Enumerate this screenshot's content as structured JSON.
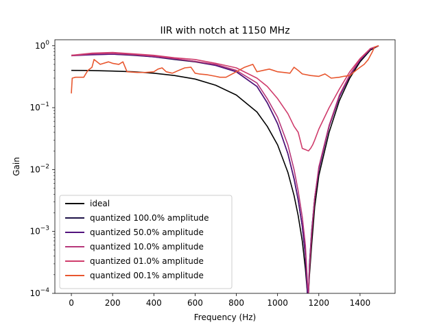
{
  "chart_data": {
    "type": "line",
    "title": "IIR with notch at 1150 MHz",
    "xlabel": "Frequency (Hz)",
    "ylabel": "Gain",
    "xlim": [
      -80,
      1570
    ],
    "ylim": [
      0.0001,
      1.25
    ],
    "yscale": "log",
    "grid": false,
    "legend_position": "lower-left",
    "x_ticks": [
      {
        "value": 0,
        "label": "0"
      },
      {
        "value": 200,
        "label": "200"
      },
      {
        "value": 400,
        "label": "400"
      },
      {
        "value": 600,
        "label": "600"
      },
      {
        "value": 800,
        "label": "800"
      },
      {
        "value": 1000,
        "label": "1000"
      },
      {
        "value": 1200,
        "label": "1200"
      },
      {
        "value": 1400,
        "label": "1400"
      }
    ],
    "y_ticks": [
      {
        "value": 1,
        "base": "10",
        "exp": "0"
      },
      {
        "value": 0.1,
        "base": "10",
        "exp": "−1"
      },
      {
        "value": 0.01,
        "base": "10",
        "exp": "−2"
      },
      {
        "value": 0.001,
        "base": "10",
        "exp": "−3"
      },
      {
        "value": 0.0001,
        "base": "10",
        "exp": "−4"
      }
    ],
    "series": [
      {
        "name": "ideal",
        "color": "#000000",
        "x": [
          0,
          100,
          200,
          300,
          400,
          500,
          600,
          700,
          800,
          900,
          950,
          1000,
          1050,
          1080,
          1100,
          1120,
          1135,
          1145,
          1150,
          1155,
          1165,
          1180,
          1200,
          1250,
          1300,
          1350,
          1400,
          1450,
          1490
        ],
        "y": [
          0.4,
          0.398,
          0.39,
          0.38,
          0.36,
          0.33,
          0.29,
          0.23,
          0.16,
          0.085,
          0.05,
          0.025,
          0.009,
          0.0038,
          0.0018,
          0.0007,
          0.00025,
          0.0001,
          0.0001,
          0.0002,
          0.0006,
          0.0025,
          0.008,
          0.04,
          0.13,
          0.3,
          0.55,
          0.85,
          1.0
        ]
      },
      {
        "name": "quantized 100.0% amplitude",
        "color": "#1d1147",
        "x": [
          0,
          100,
          200,
          300,
          400,
          500,
          600,
          700,
          800,
          900,
          950,
          1000,
          1050,
          1080,
          1100,
          1120,
          1135,
          1145,
          1150,
          1155,
          1165,
          1180,
          1200,
          1250,
          1300,
          1350,
          1400,
          1450,
          1490
        ],
        "y": [
          0.7,
          0.72,
          0.73,
          0.7,
          0.66,
          0.6,
          0.55,
          0.48,
          0.38,
          0.22,
          0.12,
          0.055,
          0.018,
          0.007,
          0.0032,
          0.0012,
          0.0004,
          0.0001,
          0.0001,
          0.0003,
          0.001,
          0.0035,
          0.01,
          0.05,
          0.15,
          0.33,
          0.58,
          0.88,
          1.0
        ]
      },
      {
        "name": "quantized 50.0% amplitude",
        "color": "#51127c",
        "x": [
          0,
          100,
          200,
          300,
          400,
          500,
          600,
          700,
          800,
          900,
          950,
          1000,
          1050,
          1080,
          1100,
          1120,
          1135,
          1145,
          1150,
          1155,
          1165,
          1180,
          1200,
          1250,
          1300,
          1350,
          1400,
          1450,
          1490
        ],
        "y": [
          0.69,
          0.715,
          0.73,
          0.71,
          0.66,
          0.61,
          0.56,
          0.48,
          0.38,
          0.22,
          0.12,
          0.055,
          0.018,
          0.0072,
          0.0033,
          0.0012,
          0.00042,
          0.0001,
          0.0001,
          0.0003,
          0.001,
          0.0035,
          0.01,
          0.05,
          0.15,
          0.33,
          0.58,
          0.88,
          1.0
        ]
      },
      {
        "name": "quantized 10.0% amplitude",
        "color": "#b63679",
        "x": [
          0,
          100,
          200,
          300,
          400,
          500,
          600,
          700,
          800,
          900,
          950,
          1000,
          1050,
          1080,
          1100,
          1120,
          1135,
          1145,
          1150,
          1155,
          1165,
          1180,
          1200,
          1250,
          1300,
          1350,
          1400,
          1450,
          1490
        ],
        "y": [
          0.69,
          0.74,
          0.75,
          0.72,
          0.68,
          0.62,
          0.56,
          0.5,
          0.4,
          0.25,
          0.14,
          0.07,
          0.025,
          0.01,
          0.0045,
          0.0017,
          0.0006,
          0.00015,
          0.0001,
          0.00025,
          0.0009,
          0.0035,
          0.011,
          0.052,
          0.16,
          0.34,
          0.6,
          0.9,
          1.0
        ]
      },
      {
        "name": "quantized 01.0% amplitude",
        "color": "#cf3b6b",
        "x": [
          0,
          100,
          200,
          300,
          400,
          500,
          600,
          700,
          800,
          900,
          950,
          1000,
          1050,
          1080,
          1100,
          1120,
          1135,
          1150,
          1160,
          1170,
          1180,
          1200,
          1250,
          1300,
          1350,
          1400,
          1450,
          1490
        ],
        "y": [
          0.7,
          0.76,
          0.78,
          0.74,
          0.7,
          0.64,
          0.6,
          0.52,
          0.44,
          0.3,
          0.22,
          0.14,
          0.08,
          0.05,
          0.04,
          0.022,
          0.021,
          0.02,
          0.022,
          0.025,
          0.03,
          0.045,
          0.1,
          0.2,
          0.38,
          0.62,
          0.9,
          1.0
        ]
      },
      {
        "name": "quantized 00.1% amplitude",
        "color": "#e8562e",
        "x": [
          0,
          2,
          4,
          20,
          60,
          80,
          100,
          110,
          140,
          180,
          200,
          230,
          250,
          270,
          320,
          360,
          400,
          420,
          440,
          460,
          490,
          520,
          550,
          580,
          600,
          620,
          660,
          700,
          720,
          750,
          800,
          840,
          880,
          900,
          930,
          960,
          980,
          1000,
          1030,
          1060,
          1080,
          1100,
          1120,
          1160,
          1200,
          1230,
          1260,
          1300,
          1320,
          1350,
          1380,
          1400,
          1420,
          1440,
          1460,
          1470,
          1490
        ],
        "y": [
          0.17,
          0.22,
          0.3,
          0.31,
          0.31,
          0.4,
          0.45,
          0.6,
          0.5,
          0.55,
          0.52,
          0.5,
          0.55,
          0.38,
          0.37,
          0.37,
          0.38,
          0.42,
          0.44,
          0.38,
          0.36,
          0.4,
          0.44,
          0.45,
          0.36,
          0.35,
          0.34,
          0.32,
          0.31,
          0.31,
          0.38,
          0.45,
          0.5,
          0.38,
          0.4,
          0.42,
          0.4,
          0.38,
          0.37,
          0.36,
          0.45,
          0.4,
          0.35,
          0.33,
          0.32,
          0.35,
          0.3,
          0.31,
          0.32,
          0.33,
          0.4,
          0.45,
          0.5,
          0.6,
          0.8,
          0.95,
          1.0
        ]
      }
    ]
  }
}
